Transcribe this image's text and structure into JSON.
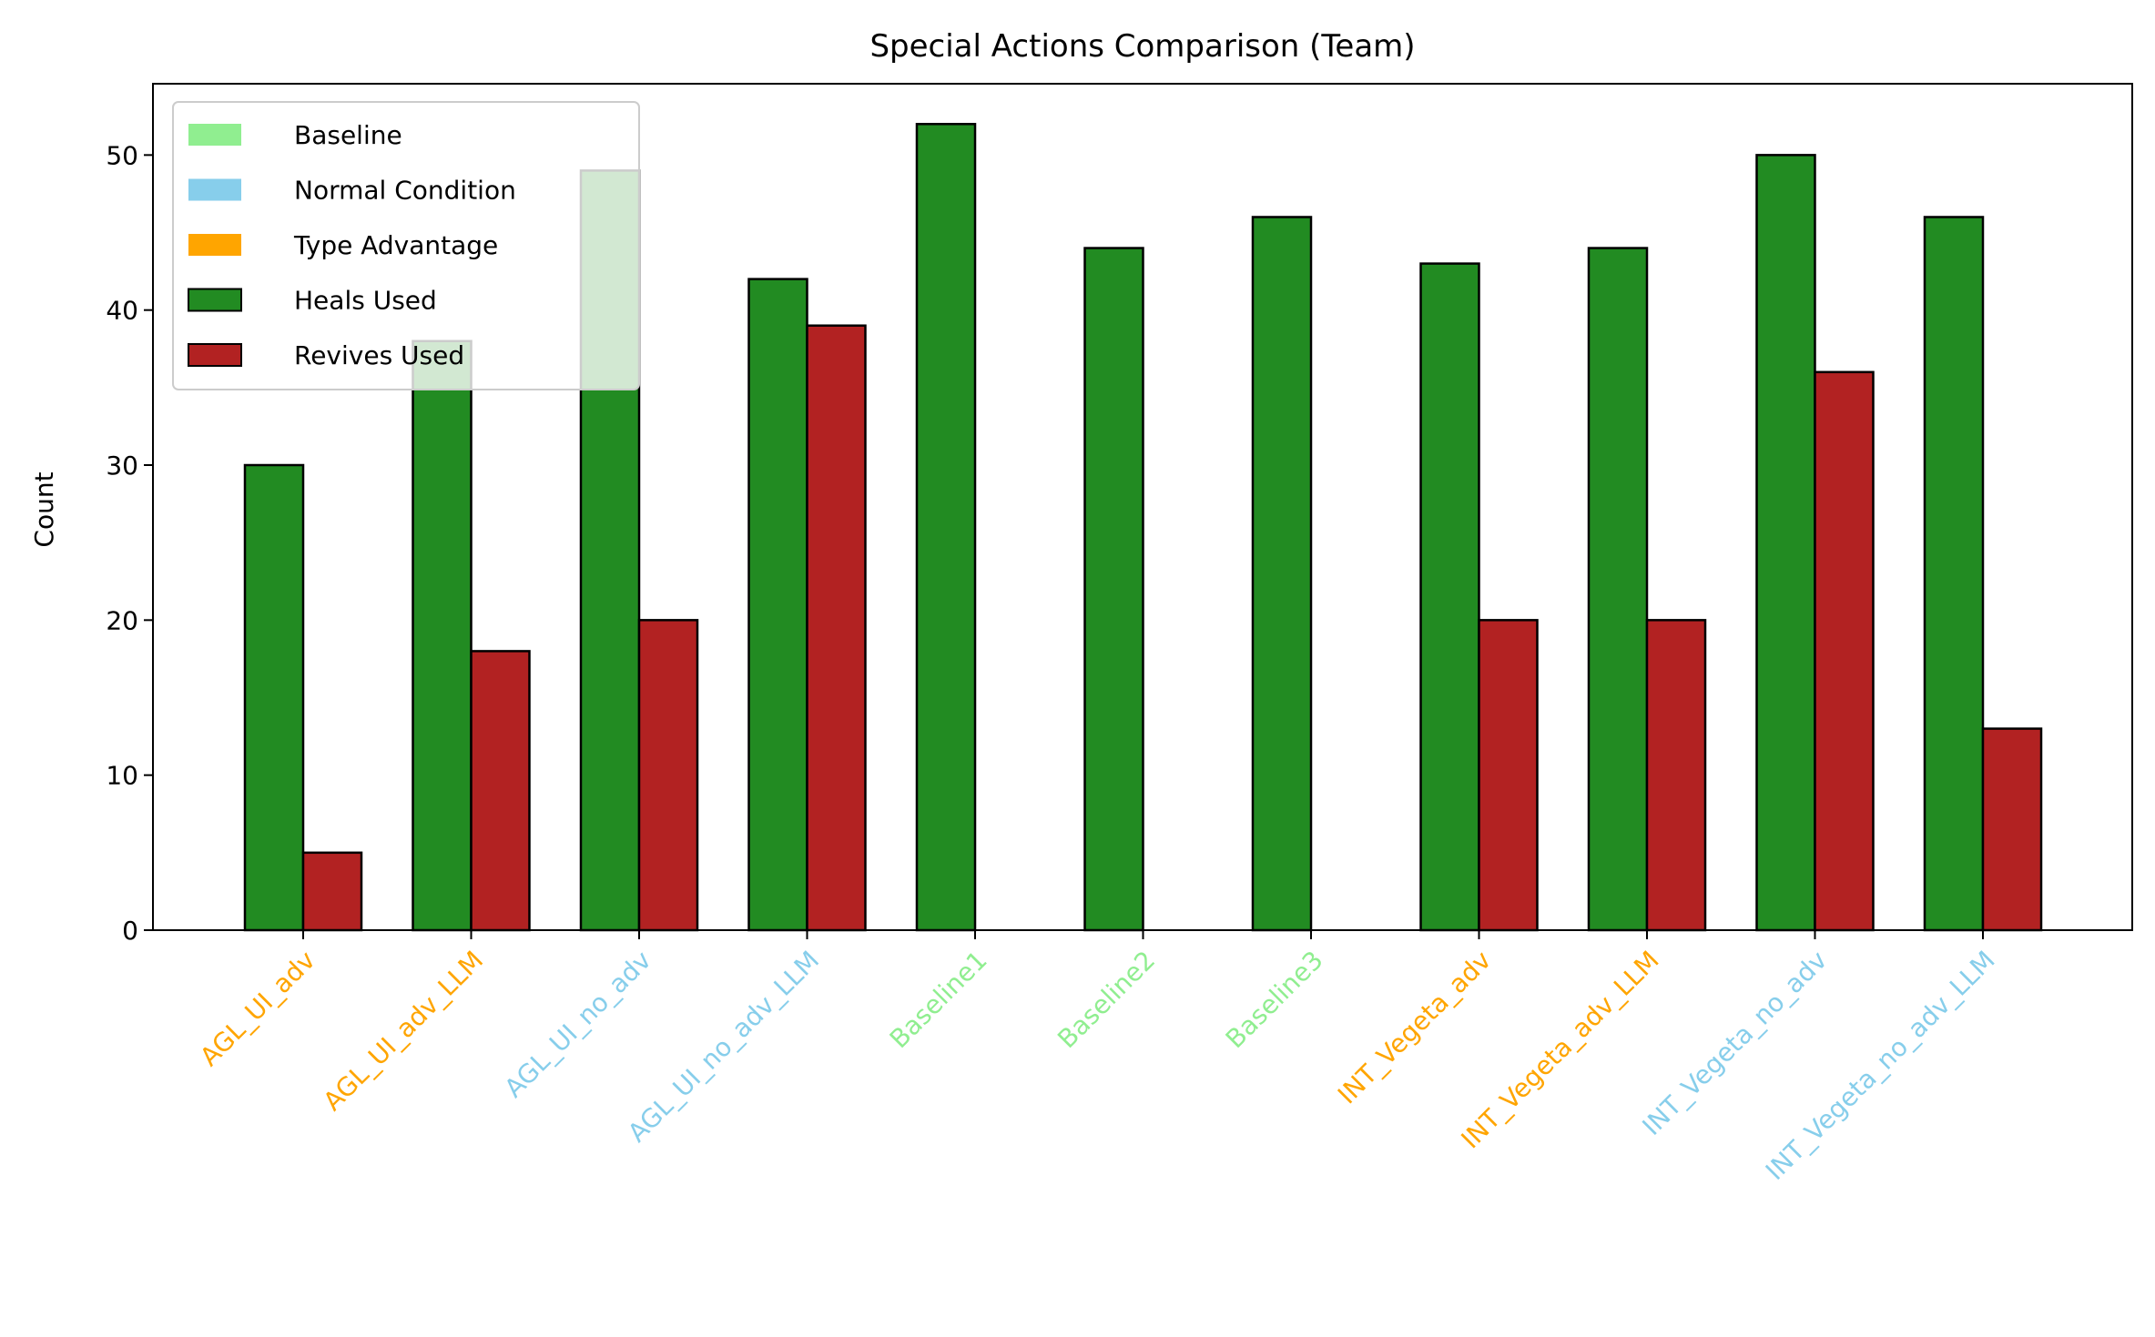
{
  "chart_data": {
    "type": "bar",
    "title": "Special Actions Comparison (Team)",
    "xlabel": "",
    "ylabel": "Count",
    "ylim": [
      0,
      54.6
    ],
    "yticks": [
      0,
      10,
      20,
      30,
      40,
      50
    ],
    "grid": false,
    "legend_position": "top-left",
    "categories": [
      "AGL_UI_adv",
      "AGL_UI_adv_LLM",
      "AGL_UI_no_adv",
      "AGL_UI_no_adv_LLM",
      "Baseline1",
      "Baseline2",
      "Baseline3",
      "INT_Vegeta_adv",
      "INT_Vegeta_adv_LLM",
      "INT_Vegeta_no_adv",
      "INT_Vegeta_no_adv_LLM"
    ],
    "category_groups": [
      "Type Advantage",
      "Type Advantage",
      "Normal Condition",
      "Normal Condition",
      "Baseline",
      "Baseline",
      "Baseline",
      "Type Advantage",
      "Type Advantage",
      "Normal Condition",
      "Normal Condition"
    ],
    "groups": [
      {
        "name": "Baseline",
        "color": "#90EE90"
      },
      {
        "name": "Normal Condition",
        "color": "#87CEEB"
      },
      {
        "name": "Type Advantage",
        "color": "#FFA500"
      }
    ],
    "series": [
      {
        "name": "Heals Used",
        "color": "#228B22",
        "values": [
          30,
          38,
          49,
          42,
          52,
          44,
          46,
          43,
          44,
          50,
          46
        ]
      },
      {
        "name": "Revives Used",
        "color": "#B22222",
        "values": [
          5,
          18,
          20,
          39,
          0,
          0,
          0,
          20,
          20,
          36,
          13
        ]
      }
    ]
  }
}
